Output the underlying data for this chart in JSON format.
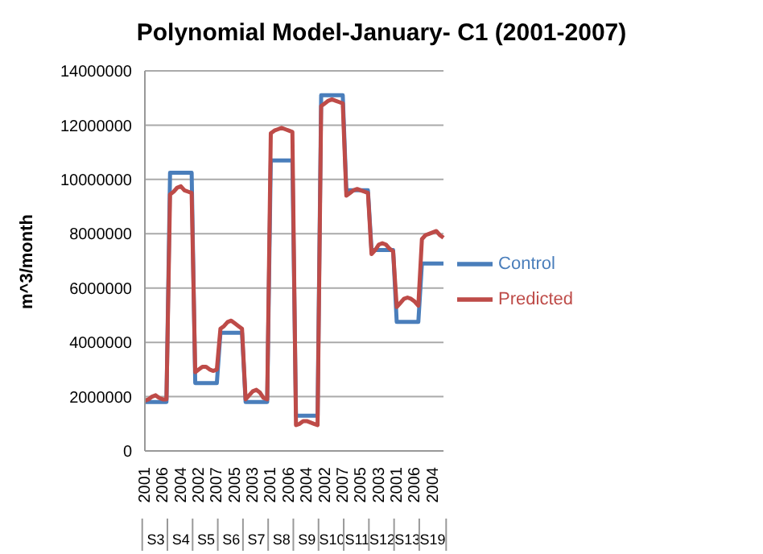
{
  "chart_data": {
    "type": "line",
    "title": "Polynomial Model-January- C1 (2001-2007)",
    "ylabel": "m^3/month",
    "categories": [
      "2001",
      null,
      null,
      null,
      null,
      "2006",
      null,
      null,
      null,
      null,
      "2004",
      null,
      null,
      null,
      null,
      "2002",
      null,
      null,
      null,
      null,
      "2007",
      null,
      null,
      null,
      null,
      "2005",
      null,
      null,
      null,
      null,
      "2003",
      null,
      null,
      null,
      null,
      "2001",
      null,
      null,
      null,
      null,
      "2006",
      null,
      null,
      null,
      null,
      "2004",
      null,
      null,
      null,
      null,
      "2002",
      null,
      null,
      null,
      null,
      "2007",
      null,
      null,
      null,
      null,
      "2005",
      null,
      null,
      null,
      null,
      "2003",
      null,
      null,
      null,
      null,
      "2001",
      null,
      null,
      null,
      null,
      "2006",
      null,
      null,
      null,
      null,
      "2004",
      null,
      null,
      null
    ],
    "annotations": [
      "S3",
      "S4",
      "S5",
      "S6",
      "S7",
      "S8",
      "S9",
      "S10",
      "S11",
      "S12",
      "S13",
      "S19"
    ],
    "series": [
      {
        "name": "Control",
        "color": "#4a7ebb",
        "values": [
          1800000,
          1800000,
          1800000,
          1800000,
          1800000,
          1800000,
          1800000,
          10250000,
          10250000,
          10250000,
          10250000,
          10250000,
          10250000,
          10250000,
          2500000,
          2500000,
          2500000,
          2500000,
          2500000,
          2500000,
          2500000,
          4350000,
          4350000,
          4350000,
          4350000,
          4350000,
          4350000,
          4350000,
          1800000,
          1800000,
          1800000,
          1800000,
          1800000,
          1800000,
          1800000,
          10700000,
          10700000,
          10700000,
          10700000,
          10700000,
          10700000,
          10700000,
          1300000,
          1300000,
          1300000,
          1300000,
          1300000,
          1300000,
          1300000,
          13100000,
          13100000,
          13100000,
          13100000,
          13100000,
          13100000,
          13100000,
          9600000,
          9600000,
          9600000,
          9600000,
          9600000,
          9600000,
          9600000,
          7400000,
          7400000,
          7400000,
          7400000,
          7400000,
          7400000,
          7400000,
          4750000,
          4750000,
          4750000,
          4750000,
          4750000,
          4750000,
          4750000,
          6900000,
          6900000,
          6900000,
          6900000,
          6900000,
          6900000,
          6900000
        ]
      },
      {
        "name": "Predicted",
        "color": "#be4b48",
        "values": [
          1850000,
          1900000,
          2000000,
          2050000,
          1950000,
          1900000,
          1900000,
          9450000,
          9550000,
          9700000,
          9750000,
          9600000,
          9550000,
          9500000,
          2900000,
          3000000,
          3100000,
          3100000,
          3000000,
          2950000,
          3000000,
          4500000,
          4600000,
          4750000,
          4800000,
          4700000,
          4600000,
          4500000,
          1900000,
          2050000,
          2200000,
          2250000,
          2150000,
          1950000,
          1900000,
          11700000,
          11800000,
          11850000,
          11900000,
          11850000,
          11800000,
          11750000,
          950000,
          1000000,
          1100000,
          1100000,
          1050000,
          1000000,
          950000,
          12700000,
          12800000,
          12900000,
          12950000,
          12900000,
          12850000,
          12800000,
          9400000,
          9500000,
          9600000,
          9650000,
          9600000,
          9550000,
          9500000,
          7250000,
          7400000,
          7600000,
          7650000,
          7600000,
          7450000,
          7350000,
          5300000,
          5450000,
          5600000,
          5650000,
          5600000,
          5500000,
          5350000,
          7800000,
          7950000,
          8000000,
          8050000,
          8100000,
          7950000,
          7850000
        ]
      }
    ],
    "ylim": [
      0,
      14000000
    ],
    "yticks": [
      0,
      2000000,
      4000000,
      6000000,
      8000000,
      10000000,
      12000000,
      14000000
    ],
    "grid": "y",
    "legend": "right",
    "line_style": "solid",
    "marker": "none"
  }
}
